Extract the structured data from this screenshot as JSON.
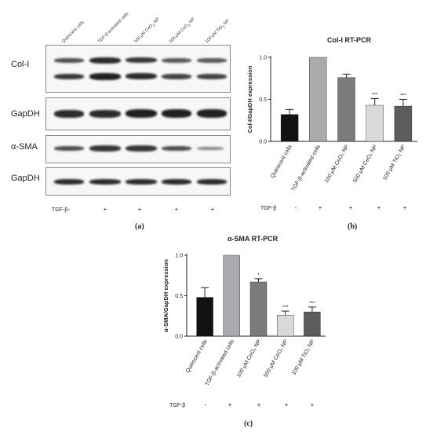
{
  "panel_a": {
    "lanes": [
      {
        "html": "Quiescent cells"
      },
      {
        "html": "TGF-β-activated cells"
      },
      {
        "html": "100 μM CeO<sub>2</sub> NP"
      },
      {
        "html": "500 μM CeO<sub>2</sub> NP"
      },
      {
        "html": "100 μM TiO<sub>2</sub> NP"
      }
    ],
    "blots": [
      {
        "label": "Col-I"
      },
      {
        "label": "GapDH"
      },
      {
        "label": "α-SMA"
      },
      {
        "label": "GapDH"
      }
    ],
    "treatment_label": "TGF-β",
    "signs": [
      "-",
      "+",
      "+",
      "+",
      "+"
    ],
    "tag": "(a)"
  },
  "panel_b": {
    "tag": "(b)",
    "treatment_label": "TGF-β",
    "signs": [
      "-",
      "+",
      "+",
      "+",
      "+"
    ]
  },
  "panel_c": {
    "tag": "(c)",
    "treatment_label": "TGF-β",
    "signs": [
      "-",
      "+",
      "+",
      "+",
      "+"
    ]
  },
  "chart_data": [
    {
      "type": "bar",
      "title": "Col-I RT-PCR",
      "ylabel": "Col-I/GapDH expression",
      "ylim": [
        0,
        1.0
      ],
      "yticks": [
        "0.0",
        "0.5",
        "1.0"
      ],
      "categories": [
        "Quiescent cells",
        "TGF-β-activated cells",
        "100 μM CeO₂ NP",
        "500 μM CeO₂ NP",
        "100 μM TiO₂ NP"
      ],
      "values": [
        0.32,
        1.0,
        0.76,
        0.43,
        0.42
      ],
      "errors": [
        0.06,
        0.0,
        0.04,
        0.08,
        0.08
      ],
      "significance": [
        "",
        "",
        "",
        "***",
        "***"
      ],
      "colors": [
        "#111111",
        "#a9a9ae",
        "#7b7b7b",
        "#d9d9d9",
        "#5c5c5c"
      ]
    },
    {
      "type": "bar",
      "title": "α-SMA RT-PCR",
      "ylabel": "α-SMA/GapDH expression",
      "ylim": [
        0,
        1.0
      ],
      "yticks": [
        "0.0",
        "0.5",
        "1.0"
      ],
      "categories": [
        "Quiescent cells",
        "TGF-β-activated cells",
        "100 μM CeO₂ NP",
        "500 μM CeO₂ NP",
        "100 μM TiO₂ NP"
      ],
      "values": [
        0.48,
        1.0,
        0.67,
        0.26,
        0.3
      ],
      "errors": [
        0.12,
        0.0,
        0.04,
        0.05,
        0.06
      ],
      "significance": [
        "",
        "",
        "*",
        "***",
        "***"
      ],
      "colors": [
        "#111111",
        "#a9a9ae",
        "#7b7b7b",
        "#d9d9d9",
        "#5c5c5c"
      ]
    }
  ]
}
